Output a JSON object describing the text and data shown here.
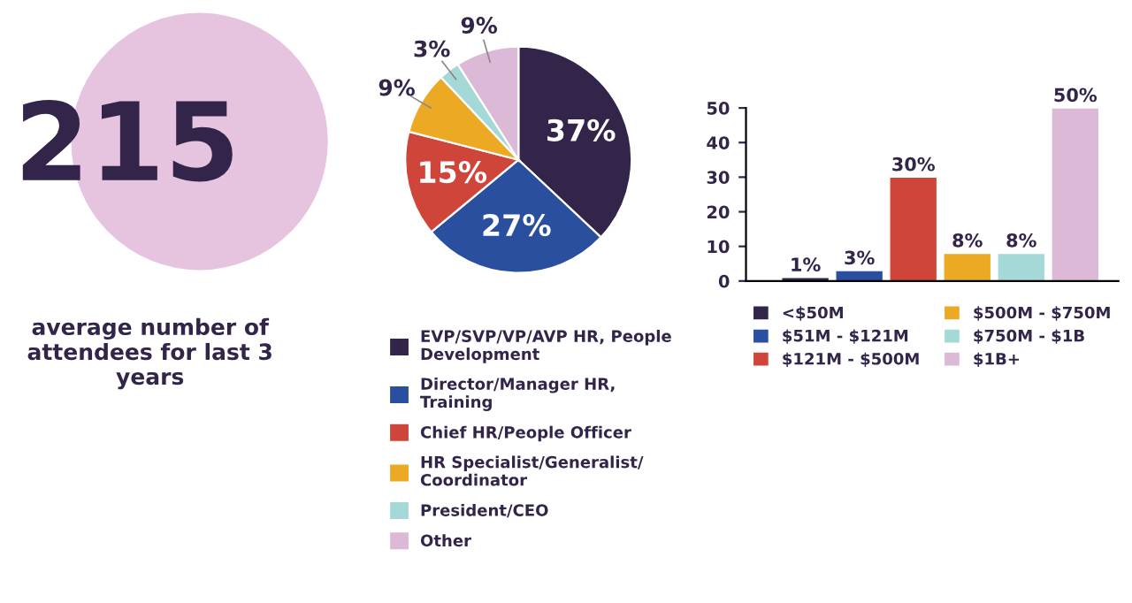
{
  "chart_data": [
    {
      "type": "other",
      "title": "215",
      "subtitle": "average number of attendees for last 3 years"
    },
    {
      "type": "pie",
      "categories": [
        "EVP/SVP/VP/AVP HR, People Development",
        "Director/Manager HR, Training",
        "Chief HR/People Officer",
        "HR Specialist/Generalist/ Coordinator",
        "President/CEO",
        "Other"
      ],
      "values": [
        37,
        27,
        15,
        9,
        3,
        9
      ],
      "colors": [
        "#33254a",
        "#2a4f9e",
        "#d0453a",
        "#eba924",
        "#a4d9d8",
        "#dcb9d6"
      ],
      "value_labels": [
        "37%",
        "27%",
        "15%",
        "9%",
        "3%",
        "9%"
      ],
      "legend": "bottom"
    },
    {
      "type": "bar",
      "categories": [
        null,
        null,
        null,
        null,
        null,
        null
      ],
      "series": [
        {
          "name": "<$50M",
          "color": "#33254a",
          "values": [
            1,
            null,
            null,
            null,
            null,
            null
          ],
          "value_labels": [
            "1%",
            null,
            null,
            null,
            null,
            null
          ]
        },
        {
          "name": "$51M - $121M",
          "color": "#2a4f9e",
          "values": [
            null,
            3,
            null,
            null,
            null,
            null
          ],
          "value_labels": [
            null,
            "3%",
            null,
            null,
            null,
            null
          ]
        },
        {
          "name": "$121M - $500M",
          "color": "#d0453a",
          "values": [
            null,
            null,
            30,
            null,
            null,
            null
          ],
          "value_labels": [
            null,
            null,
            "30%",
            null,
            null,
            null
          ]
        },
        {
          "name": "$500M - $750M",
          "color": "#eba924",
          "values": [
            null,
            null,
            null,
            8,
            null,
            null
          ],
          "value_labels": [
            null,
            null,
            null,
            "8%",
            null,
            null
          ]
        },
        {
          "name": "$750M - $1B",
          "color": "#a4d9d8",
          "values": [
            null,
            null,
            null,
            null,
            8,
            null
          ],
          "value_labels": [
            null,
            null,
            null,
            null,
            "8%",
            null
          ]
        },
        {
          "name": "$1B+",
          "color": "#dcb9d6",
          "values": [
            null,
            null,
            null,
            null,
            null,
            50
          ],
          "value_labels": [
            null,
            null,
            null,
            null,
            null,
            "50%"
          ]
        }
      ],
      "ylim": [
        0,
        50
      ],
      "yticks": [
        0,
        10,
        20,
        30,
        40,
        50
      ],
      "tick_labels": "y",
      "legend": "bottom",
      "grid": false
    }
  ]
}
